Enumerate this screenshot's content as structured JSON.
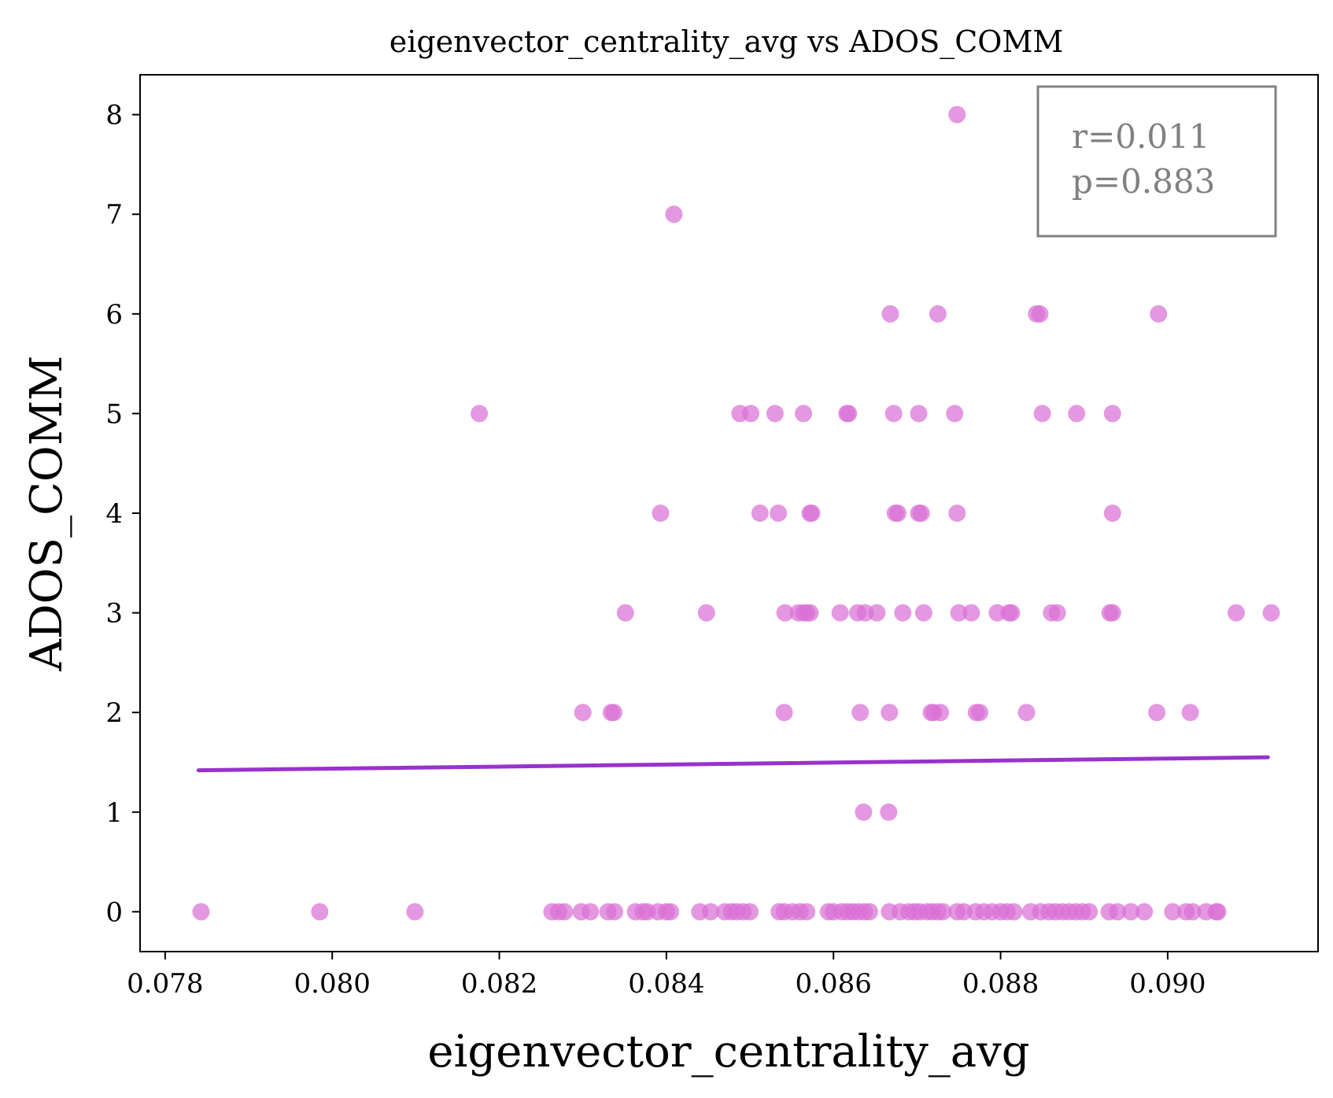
{
  "chart_data": {
    "type": "scatter",
    "title": "eigenvector_centrality_avg vs ADOS_COMM",
    "xlabel": "eigenvector_centrality_avg",
    "ylabel": "ADOS_COMM",
    "xlim": [
      0.0777,
      0.0918
    ],
    "ylim": [
      -0.4,
      8.4
    ],
    "xticks": [
      0.078,
      0.08,
      0.082,
      0.084,
      0.086,
      0.088,
      0.09
    ],
    "xtick_labels": [
      "0.078",
      "0.080",
      "0.082",
      "0.084",
      "0.086",
      "0.088",
      "0.090"
    ],
    "yticks": [
      0,
      1,
      2,
      3,
      4,
      5,
      6,
      7,
      8
    ],
    "ytick_labels": [
      "0",
      "1",
      "2",
      "3",
      "4",
      "5",
      "6",
      "7",
      "8"
    ],
    "grid": false,
    "colors": {
      "points": "#d970d6",
      "fit_line": "#9932cc",
      "stat_box": "#808080"
    },
    "annotation": {
      "r_text": "r=0.011",
      "p_text": "p=0.883",
      "placement": "top-right"
    },
    "fit_line": {
      "x": [
        0.0784,
        0.0912
      ],
      "y": [
        1.42,
        1.55
      ]
    },
    "points": [
      {
        "x": 0.08748,
        "y": 8
      },
      {
        "x": 0.08409,
        "y": 7
      },
      {
        "x": 0.08668,
        "y": 6
      },
      {
        "x": 0.08725,
        "y": 6
      },
      {
        "x": 0.08843,
        "y": 6
      },
      {
        "x": 0.08847,
        "y": 6
      },
      {
        "x": 0.08989,
        "y": 6
      },
      {
        "x": 0.08176,
        "y": 5
      },
      {
        "x": 0.08488,
        "y": 5
      },
      {
        "x": 0.08501,
        "y": 5
      },
      {
        "x": 0.0853,
        "y": 5
      },
      {
        "x": 0.08564,
        "y": 5
      },
      {
        "x": 0.08616,
        "y": 5
      },
      {
        "x": 0.08618,
        "y": 5
      },
      {
        "x": 0.08672,
        "y": 5
      },
      {
        "x": 0.08702,
        "y": 5
      },
      {
        "x": 0.08745,
        "y": 5
      },
      {
        "x": 0.0885,
        "y": 5
      },
      {
        "x": 0.08891,
        "y": 5
      },
      {
        "x": 0.08934,
        "y": 5
      },
      {
        "x": 0.08393,
        "y": 4
      },
      {
        "x": 0.08512,
        "y": 4
      },
      {
        "x": 0.08534,
        "y": 4
      },
      {
        "x": 0.08572,
        "y": 4
      },
      {
        "x": 0.08574,
        "y": 4
      },
      {
        "x": 0.08674,
        "y": 4
      },
      {
        "x": 0.08677,
        "y": 4
      },
      {
        "x": 0.08702,
        "y": 4
      },
      {
        "x": 0.08705,
        "y": 4
      },
      {
        "x": 0.08748,
        "y": 4
      },
      {
        "x": 0.08934,
        "y": 4
      },
      {
        "x": 0.08351,
        "y": 3
      },
      {
        "x": 0.08448,
        "y": 3
      },
      {
        "x": 0.08542,
        "y": 3
      },
      {
        "x": 0.08558,
        "y": 3
      },
      {
        "x": 0.08564,
        "y": 3
      },
      {
        "x": 0.08568,
        "y": 3
      },
      {
        "x": 0.08572,
        "y": 3
      },
      {
        "x": 0.08608,
        "y": 3
      },
      {
        "x": 0.08629,
        "y": 3
      },
      {
        "x": 0.08638,
        "y": 3
      },
      {
        "x": 0.08652,
        "y": 3
      },
      {
        "x": 0.08683,
        "y": 3
      },
      {
        "x": 0.08708,
        "y": 3
      },
      {
        "x": 0.0875,
        "y": 3
      },
      {
        "x": 0.08765,
        "y": 3
      },
      {
        "x": 0.08796,
        "y": 3
      },
      {
        "x": 0.0881,
        "y": 3
      },
      {
        "x": 0.08813,
        "y": 3
      },
      {
        "x": 0.08861,
        "y": 3
      },
      {
        "x": 0.08868,
        "y": 3
      },
      {
        "x": 0.08931,
        "y": 3
      },
      {
        "x": 0.08934,
        "y": 3
      },
      {
        "x": 0.09082,
        "y": 3
      },
      {
        "x": 0.09124,
        "y": 3
      },
      {
        "x": 0.083,
        "y": 2
      },
      {
        "x": 0.08334,
        "y": 2
      },
      {
        "x": 0.08337,
        "y": 2
      },
      {
        "x": 0.08541,
        "y": 2
      },
      {
        "x": 0.08632,
        "y": 2
      },
      {
        "x": 0.08667,
        "y": 2
      },
      {
        "x": 0.08717,
        "y": 2
      },
      {
        "x": 0.0872,
        "y": 2
      },
      {
        "x": 0.08728,
        "y": 2
      },
      {
        "x": 0.08771,
        "y": 2
      },
      {
        "x": 0.08775,
        "y": 2
      },
      {
        "x": 0.08831,
        "y": 2
      },
      {
        "x": 0.08987,
        "y": 2
      },
      {
        "x": 0.09027,
        "y": 2
      },
      {
        "x": 0.08636,
        "y": 1
      },
      {
        "x": 0.08666,
        "y": 1
      },
      {
        "x": 0.07843,
        "y": 0
      },
      {
        "x": 0.07985,
        "y": 0
      },
      {
        "x": 0.08099,
        "y": 0
      },
      {
        "x": 0.08263,
        "y": 0
      },
      {
        "x": 0.08271,
        "y": 0
      },
      {
        "x": 0.08278,
        "y": 0
      },
      {
        "x": 0.08298,
        "y": 0
      },
      {
        "x": 0.08309,
        "y": 0
      },
      {
        "x": 0.0833,
        "y": 0
      },
      {
        "x": 0.08338,
        "y": 0
      },
      {
        "x": 0.08363,
        "y": 0
      },
      {
        "x": 0.08372,
        "y": 0
      },
      {
        "x": 0.08377,
        "y": 0
      },
      {
        "x": 0.0839,
        "y": 0
      },
      {
        "x": 0.084,
        "y": 0
      },
      {
        "x": 0.08405,
        "y": 0
      },
      {
        "x": 0.0844,
        "y": 0
      },
      {
        "x": 0.08453,
        "y": 0
      },
      {
        "x": 0.0847,
        "y": 0
      },
      {
        "x": 0.08478,
        "y": 0
      },
      {
        "x": 0.08484,
        "y": 0
      },
      {
        "x": 0.08492,
        "y": 0
      },
      {
        "x": 0.085,
        "y": 0
      },
      {
        "x": 0.08535,
        "y": 0
      },
      {
        "x": 0.08541,
        "y": 0
      },
      {
        "x": 0.08551,
        "y": 0
      },
      {
        "x": 0.0856,
        "y": 0
      },
      {
        "x": 0.08568,
        "y": 0
      },
      {
        "x": 0.08594,
        "y": 0
      },
      {
        "x": 0.086,
        "y": 0
      },
      {
        "x": 0.0861,
        "y": 0
      },
      {
        "x": 0.08617,
        "y": 0
      },
      {
        "x": 0.08623,
        "y": 0
      },
      {
        "x": 0.0863,
        "y": 0
      },
      {
        "x": 0.08637,
        "y": 0
      },
      {
        "x": 0.08643,
        "y": 0
      },
      {
        "x": 0.08667,
        "y": 0
      },
      {
        "x": 0.0868,
        "y": 0
      },
      {
        "x": 0.0869,
        "y": 0
      },
      {
        "x": 0.08697,
        "y": 0
      },
      {
        "x": 0.08703,
        "y": 0
      },
      {
        "x": 0.08712,
        "y": 0
      },
      {
        "x": 0.08718,
        "y": 0
      },
      {
        "x": 0.08725,
        "y": 0
      },
      {
        "x": 0.08731,
        "y": 0
      },
      {
        "x": 0.08748,
        "y": 0
      },
      {
        "x": 0.08756,
        "y": 0
      },
      {
        "x": 0.0877,
        "y": 0
      },
      {
        "x": 0.0878,
        "y": 0
      },
      {
        "x": 0.0879,
        "y": 0
      },
      {
        "x": 0.088,
        "y": 0
      },
      {
        "x": 0.08808,
        "y": 0
      },
      {
        "x": 0.08816,
        "y": 0
      },
      {
        "x": 0.08836,
        "y": 0
      },
      {
        "x": 0.08848,
        "y": 0
      },
      {
        "x": 0.08858,
        "y": 0
      },
      {
        "x": 0.08866,
        "y": 0
      },
      {
        "x": 0.08874,
        "y": 0
      },
      {
        "x": 0.08882,
        "y": 0
      },
      {
        "x": 0.0889,
        "y": 0
      },
      {
        "x": 0.08898,
        "y": 0
      },
      {
        "x": 0.08906,
        "y": 0
      },
      {
        "x": 0.0893,
        "y": 0
      },
      {
        "x": 0.0894,
        "y": 0
      },
      {
        "x": 0.08956,
        "y": 0
      },
      {
        "x": 0.08972,
        "y": 0
      },
      {
        "x": 0.09006,
        "y": 0
      },
      {
        "x": 0.09022,
        "y": 0
      },
      {
        "x": 0.0903,
        "y": 0
      },
      {
        "x": 0.09046,
        "y": 0
      },
      {
        "x": 0.09058,
        "y": 0
      },
      {
        "x": 0.0906,
        "y": 0
      }
    ]
  }
}
